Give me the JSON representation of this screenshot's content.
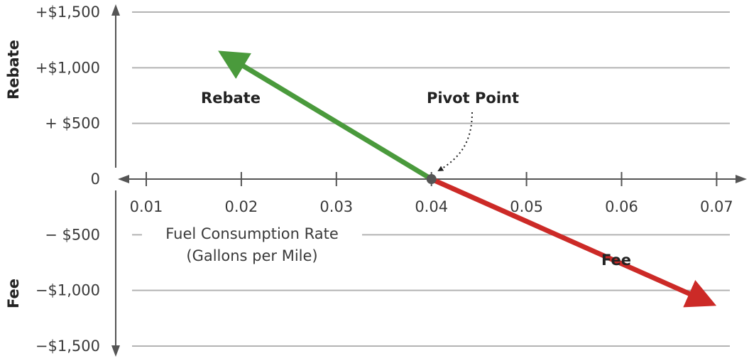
{
  "chart_data": {
    "type": "line",
    "xlabel_line1": "Fuel Consumption Rate",
    "xlabel_line2": "(Gallons per Mile)",
    "ylabel_top": "Rebate",
    "ylabel_bottom": "Fee",
    "x_ticks": [
      0.01,
      0.02,
      0.03,
      0.04,
      0.05,
      0.06,
      0.07
    ],
    "x_tick_labels": [
      "0.01",
      "0.02",
      "0.03",
      "0.04",
      "0.05",
      "0.06",
      "0.07"
    ],
    "xlim": [
      0.0,
      0.073
    ],
    "ylim": [
      -1500,
      1500
    ],
    "y_ticks": [
      1500,
      1000,
      500,
      0,
      -500,
      -1000,
      -1500
    ],
    "y_tick_labels": [
      "+$1,500",
      "+$1,000",
      "+  $500",
      "0",
      "−  $500",
      "−$1,000",
      "−$1,500"
    ],
    "grid": true,
    "series": [
      {
        "name": "Rebate",
        "color": "#4a9a3c",
        "points": [
          [
            0.04,
            0
          ],
          [
            0.018,
            1130
          ]
        ]
      },
      {
        "name": "Fee",
        "color": "#cc2a27",
        "points": [
          [
            0.04,
            0
          ],
          [
            0.0695,
            -1120
          ]
        ]
      }
    ],
    "pivot": {
      "label": "Pivot Point",
      "x": 0.04,
      "y": 0,
      "color": "#555555"
    },
    "colors": {
      "axis": "#555555",
      "grid": "#b3b3b3",
      "rebate": "#4a9a3c",
      "fee": "#cc2a27"
    }
  }
}
